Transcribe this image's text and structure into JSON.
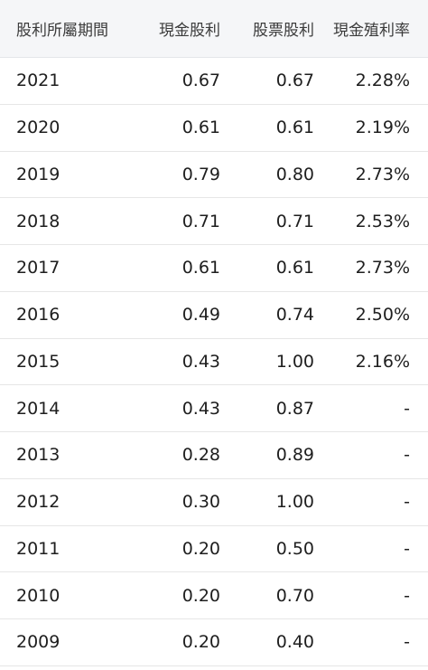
{
  "table": {
    "headers": {
      "period": "股利所屬期間",
      "cash": "現金股利",
      "stock": "股票股利",
      "yield": "現金殖利率"
    },
    "rows": [
      {
        "period": "2021",
        "cash": "0.67",
        "stock": "0.67",
        "yield": "2.28%"
      },
      {
        "period": "2020",
        "cash": "0.61",
        "stock": "0.61",
        "yield": "2.19%"
      },
      {
        "period": "2019",
        "cash": "0.79",
        "stock": "0.80",
        "yield": "2.73%"
      },
      {
        "period": "2018",
        "cash": "0.71",
        "stock": "0.71",
        "yield": "2.53%"
      },
      {
        "period": "2017",
        "cash": "0.61",
        "stock": "0.61",
        "yield": "2.73%"
      },
      {
        "period": "2016",
        "cash": "0.49",
        "stock": "0.74",
        "yield": "2.50%"
      },
      {
        "period": "2015",
        "cash": "0.43",
        "stock": "1.00",
        "yield": "2.16%"
      },
      {
        "period": "2014",
        "cash": "0.43",
        "stock": "0.87",
        "yield": "-"
      },
      {
        "period": "2013",
        "cash": "0.28",
        "stock": "0.89",
        "yield": "-"
      },
      {
        "period": "2012",
        "cash": "0.30",
        "stock": "1.00",
        "yield": "-"
      },
      {
        "period": "2011",
        "cash": "0.20",
        "stock": "0.50",
        "yield": "-"
      },
      {
        "period": "2010",
        "cash": "0.20",
        "stock": "0.70",
        "yield": "-"
      },
      {
        "period": "2009",
        "cash": "0.20",
        "stock": "0.40",
        "yield": "-"
      }
    ]
  }
}
